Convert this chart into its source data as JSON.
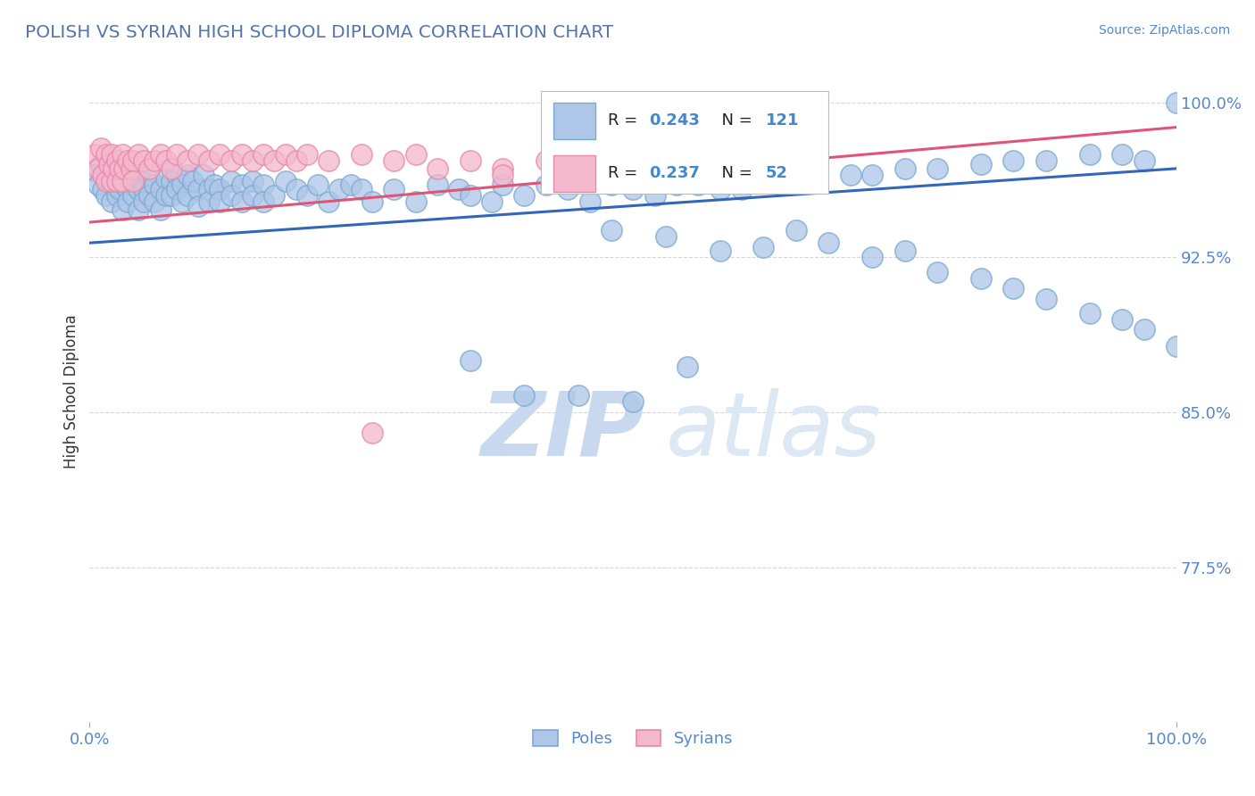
{
  "title": "POLISH VS SYRIAN HIGH SCHOOL DIPLOMA CORRELATION CHART",
  "source": "Source: ZipAtlas.com",
  "ylabel": "High School Diploma",
  "title_color": "#5577aa",
  "axis_color": "#5588cc",
  "label_color": "#333333",
  "background_color": "#ffffff",
  "grid_color": "#cccccc",
  "blue_fill": "#aec6e8",
  "blue_edge": "#7aaad0",
  "pink_fill": "#f4b8cc",
  "pink_edge": "#e888aa",
  "blue_line_color": "#3366bb",
  "pink_line_color": "#e05575",
  "watermark_zip_color": "#c8d8ee",
  "watermark_atlas_color": "#dce8f4",
  "legend_R_color": "#4488cc",
  "legend_N_color": "#222222",
  "legend_label_blue": "Poles",
  "legend_label_pink": "Syrians",
  "xlim": [
    0.0,
    1.0
  ],
  "ylim": [
    0.7,
    1.02
  ],
  "yticks": [
    0.775,
    0.85,
    0.925,
    1.0
  ],
  "ytick_labels": [
    "77.5%",
    "85.0%",
    "92.5%",
    "100.0%"
  ],
  "xticks": [
    0.0,
    1.0
  ],
  "xtick_labels": [
    "0.0%",
    "100.0%"
  ],
  "blue_scatter_x": [
    0.005,
    0.008,
    0.01,
    0.012,
    0.015,
    0.015,
    0.018,
    0.02,
    0.02,
    0.022,
    0.025,
    0.025,
    0.028,
    0.03,
    0.03,
    0.032,
    0.035,
    0.035,
    0.038,
    0.04,
    0.04,
    0.042,
    0.045,
    0.045,
    0.048,
    0.05,
    0.05,
    0.055,
    0.055,
    0.06,
    0.06,
    0.065,
    0.065,
    0.07,
    0.07,
    0.075,
    0.075,
    0.08,
    0.08,
    0.085,
    0.085,
    0.09,
    0.09,
    0.095,
    0.1,
    0.1,
    0.105,
    0.11,
    0.11,
    0.115,
    0.12,
    0.12,
    0.13,
    0.13,
    0.14,
    0.14,
    0.15,
    0.15,
    0.16,
    0.16,
    0.17,
    0.18,
    0.19,
    0.2,
    0.21,
    0.22,
    0.23,
    0.24,
    0.25,
    0.26,
    0.28,
    0.3,
    0.32,
    0.34,
    0.35,
    0.37,
    0.38,
    0.4,
    0.42,
    0.44,
    0.46,
    0.48,
    0.5,
    0.52,
    0.54,
    0.56,
    0.58,
    0.6,
    0.62,
    0.65,
    0.67,
    0.7,
    0.72,
    0.75,
    0.78,
    0.82,
    0.85,
    0.88,
    0.92,
    0.95,
    0.97,
    1.0,
    0.48,
    0.53,
    0.58,
    0.62,
    0.65,
    0.68,
    0.72,
    0.75,
    0.78,
    0.82,
    0.85,
    0.88,
    0.92,
    0.95,
    0.97,
    1.0,
    0.35,
    0.4,
    0.45,
    0.5,
    0.55
  ],
  "blue_scatter_y": [
    0.967,
    0.96,
    0.97,
    0.958,
    0.965,
    0.955,
    0.962,
    0.968,
    0.952,
    0.96,
    0.963,
    0.955,
    0.958,
    0.965,
    0.948,
    0.96,
    0.958,
    0.952,
    0.963,
    0.96,
    0.955,
    0.965,
    0.958,
    0.948,
    0.962,
    0.958,
    0.952,
    0.965,
    0.955,
    0.96,
    0.952,
    0.958,
    0.948,
    0.963,
    0.955,
    0.962,
    0.955,
    0.965,
    0.958,
    0.96,
    0.952,
    0.965,
    0.955,
    0.962,
    0.958,
    0.95,
    0.965,
    0.958,
    0.952,
    0.96,
    0.958,
    0.952,
    0.962,
    0.955,
    0.96,
    0.952,
    0.962,
    0.955,
    0.96,
    0.952,
    0.955,
    0.962,
    0.958,
    0.955,
    0.96,
    0.952,
    0.958,
    0.96,
    0.958,
    0.952,
    0.958,
    0.952,
    0.96,
    0.958,
    0.955,
    0.952,
    0.96,
    0.955,
    0.96,
    0.958,
    0.952,
    0.96,
    0.958,
    0.955,
    0.96,
    0.96,
    0.958,
    0.958,
    0.962,
    0.965,
    0.968,
    0.965,
    0.965,
    0.968,
    0.968,
    0.97,
    0.972,
    0.972,
    0.975,
    0.975,
    0.972,
    1.0,
    0.938,
    0.935,
    0.928,
    0.93,
    0.938,
    0.932,
    0.925,
    0.928,
    0.918,
    0.915,
    0.91,
    0.905,
    0.898,
    0.895,
    0.89,
    0.882,
    0.875,
    0.858,
    0.858,
    0.855,
    0.872
  ],
  "pink_scatter_x": [
    0.005,
    0.008,
    0.01,
    0.012,
    0.015,
    0.015,
    0.018,
    0.02,
    0.02,
    0.022,
    0.025,
    0.025,
    0.028,
    0.03,
    0.03,
    0.032,
    0.035,
    0.038,
    0.04,
    0.04,
    0.045,
    0.05,
    0.055,
    0.06,
    0.065,
    0.07,
    0.075,
    0.08,
    0.09,
    0.1,
    0.11,
    0.12,
    0.13,
    0.14,
    0.15,
    0.16,
    0.17,
    0.18,
    0.19,
    0.2,
    0.22,
    0.25,
    0.28,
    0.3,
    0.32,
    0.35,
    0.38,
    0.42,
    0.45,
    0.5,
    0.26,
    0.38
  ],
  "pink_scatter_y": [
    0.975,
    0.968,
    0.978,
    0.965,
    0.975,
    0.962,
    0.97,
    0.975,
    0.962,
    0.968,
    0.972,
    0.962,
    0.968,
    0.975,
    0.962,
    0.968,
    0.972,
    0.968,
    0.972,
    0.962,
    0.975,
    0.972,
    0.968,
    0.972,
    0.975,
    0.972,
    0.968,
    0.975,
    0.972,
    0.975,
    0.972,
    0.975,
    0.972,
    0.975,
    0.972,
    0.975,
    0.972,
    0.975,
    0.972,
    0.975,
    0.972,
    0.975,
    0.972,
    0.975,
    0.968,
    0.972,
    0.968,
    0.972,
    0.975,
    0.972,
    0.84,
    0.965
  ],
  "blue_trend": [
    0.0,
    1.0,
    0.932,
    0.968
  ],
  "pink_trend": [
    0.0,
    1.0,
    0.942,
    0.988
  ]
}
